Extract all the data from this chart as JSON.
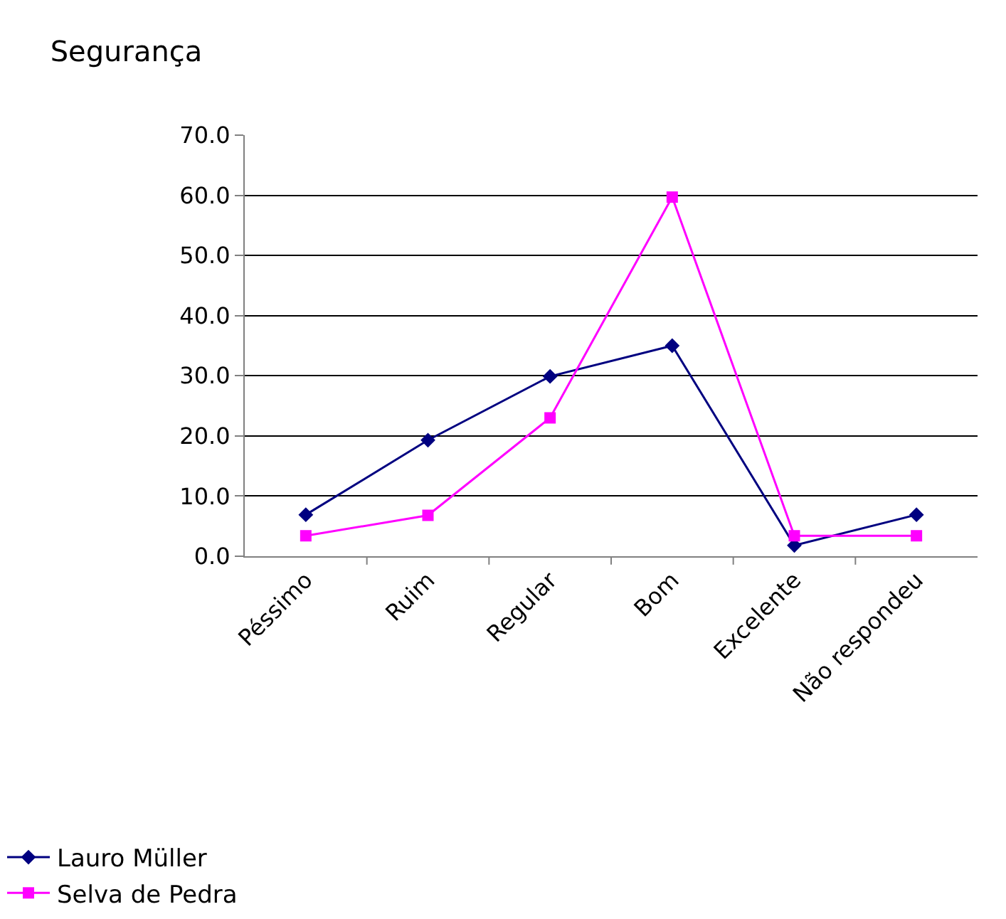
{
  "chart_data": {
    "type": "line",
    "title": "Segurança",
    "categories": [
      "Péssimo",
      "Ruim",
      "Regular",
      "Bom",
      "Excelente",
      "Não respondeu"
    ],
    "series": [
      {
        "name": "Lauro Müller",
        "color": "#000080",
        "marker": "diamond",
        "values": [
          6.9,
          19.3,
          29.9,
          35.0,
          1.8,
          6.9
        ]
      },
      {
        "name": "Selva de Pedra",
        "color": "#ff00ff",
        "marker": "square",
        "values": [
          3.4,
          6.8,
          23.0,
          59.7,
          3.4,
          3.4
        ]
      }
    ],
    "ylim": [
      0,
      70
    ],
    "yticks": [
      {
        "value": 0,
        "label": "0.0"
      },
      {
        "value": 10,
        "label": "10.0"
      },
      {
        "value": 20,
        "label": "20.0"
      },
      {
        "value": 30,
        "label": "30.0"
      },
      {
        "value": 40,
        "label": "40.0"
      },
      {
        "value": 50,
        "label": "50.0"
      },
      {
        "value": 60,
        "label": "60.0"
      },
      {
        "value": 70,
        "label": "70.0"
      }
    ],
    "grid": "y",
    "legend": "bottom left",
    "line_style": "solid"
  }
}
